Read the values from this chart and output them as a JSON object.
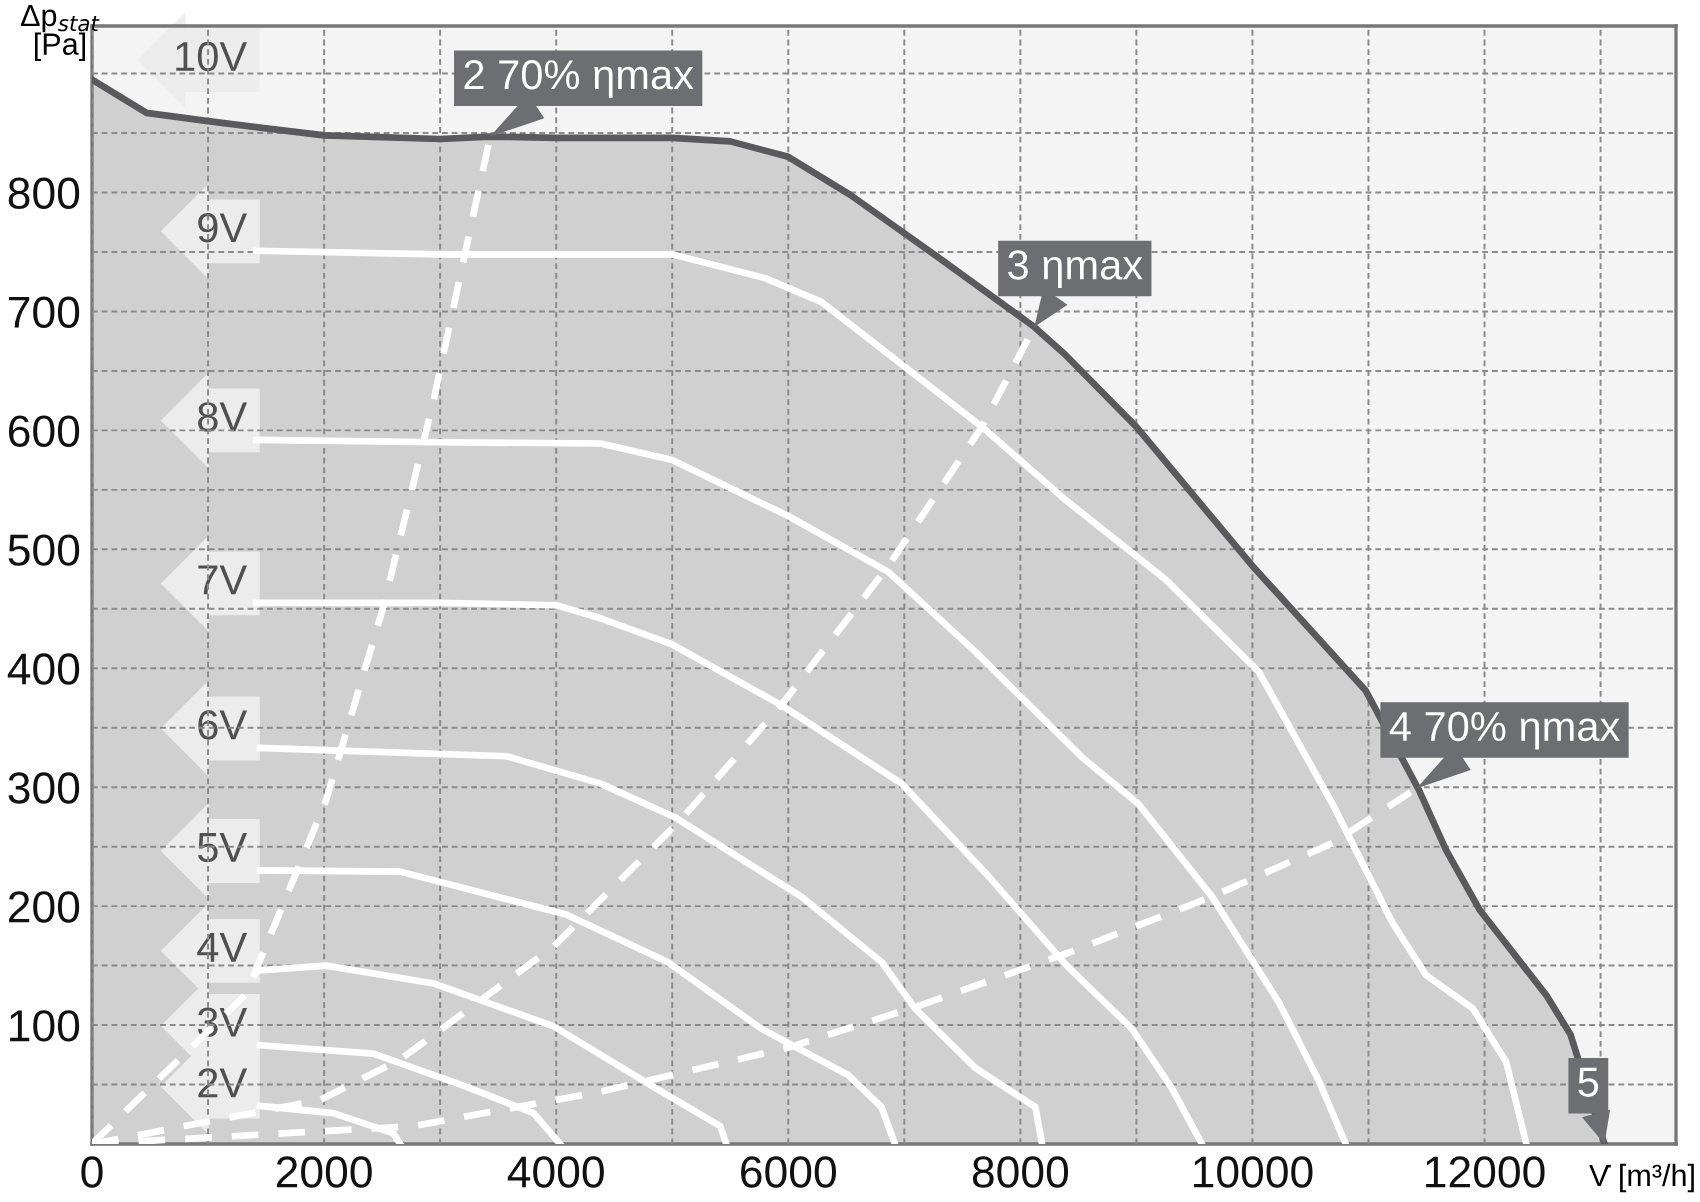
{
  "chart_data": {
    "type": "line",
    "xlabel": "V̇ [m³/h]",
    "ylabel": "Δp$_{stat}$ [Pa]",
    "xlim": [
      0,
      13650
    ],
    "ylim": [
      0,
      940
    ],
    "xticks": [
      0,
      {
        "value": 1000,
        "label": null
      },
      2000,
      {
        "value": 3000,
        "label": null
      },
      4000,
      {
        "value": 5000,
        "label": null
      },
      6000,
      {
        "value": 7000,
        "label": null
      },
      8000,
      {
        "value": 9000,
        "label": null
      },
      10000,
      {
        "value": 11000,
        "label": null
      },
      12000,
      {
        "value": 13000,
        "label": null
      }
    ],
    "yticks": [
      {
        "value": 50,
        "label": null
      },
      100,
      {
        "value": 150,
        "label": null
      },
      200,
      {
        "value": 250,
        "label": null
      },
      300,
      {
        "value": 350,
        "label": null
      },
      400,
      {
        "value": 450,
        "label": null
      },
      500,
      {
        "value": 550,
        "label": null
      },
      600,
      {
        "value": 650,
        "label": null
      },
      700,
      {
        "value": 750,
        "label": null
      },
      800,
      {
        "value": 850,
        "label": null
      },
      {
        "value": 900,
        "label": null
      }
    ],
    "grid": true,
    "series": [
      {
        "name": "10V",
        "type": "area",
        "color": "#5a5a5c",
        "x": [
          0,
          470,
          1000,
          2000,
          3000,
          3431,
          4000,
          5000,
          5500,
          6000,
          6534,
          7300,
          8120,
          8383,
          9000,
          10000,
          10977,
          11438,
          11669,
          11957,
          12533,
          12741,
          13034
        ],
        "values": [
          895,
          867,
          860,
          848,
          845,
          847,
          846,
          846,
          843,
          830,
          798,
          745,
          687,
          664,
          603,
          486,
          381,
          297,
          247,
          197,
          125,
          92,
          0
        ]
      },
      {
        "name": "9V",
        "color": "#ffffff",
        "x": [
          1414,
          3000,
          5000,
          5800,
          6285,
          7669,
          8383,
          9248,
          10055,
          10689,
          11207,
          11496,
          11899,
          12187,
          12360
        ],
        "values": [
          751,
          748,
          748,
          728,
          708,
          603,
          542,
          475,
          397,
          286,
          186,
          142,
          114,
          69,
          0
        ]
      },
      {
        "name": "8V",
        "color": "#ffffff",
        "x": [
          1414,
          3000,
          4383,
          5000,
          6000,
          6862,
          7611,
          8533,
          9017,
          9651,
          10228,
          10573,
          10804
        ],
        "values": [
          592,
          590,
          589,
          575,
          528,
          481,
          414,
          325,
          286,
          208,
          119,
          53,
          0
        ]
      },
      {
        "name": "7V",
        "color": "#ffffff",
        "x": [
          1414,
          3000,
          4000,
          4383,
          5000,
          5940,
          6977,
          7726,
          8400,
          8960,
          9305,
          9565
        ],
        "values": [
          455,
          455,
          453,
          442,
          420,
          369,
          303,
          225,
          150,
          97,
          47,
          0
        ]
      },
      {
        "name": "6V",
        "color": "#ffffff",
        "x": [
          1448,
          3575,
          4383,
          5017,
          6112,
          6804,
          7092,
          7611,
          8130,
          8187
        ],
        "values": [
          333,
          326,
          303,
          275,
          208,
          153,
          114,
          64,
          31,
          0
        ]
      },
      {
        "name": "5V",
        "color": "#ffffff",
        "x": [
          1448,
          2655,
          4086,
          4960,
          5767,
          6516,
          6804,
          6919
        ],
        "values": [
          230,
          229,
          193,
          153,
          97,
          58,
          31,
          0
        ]
      },
      {
        "name": "4V",
        "color": "#ffffff",
        "x": [
          1448,
          2017,
          2943,
          3977,
          4839,
          5414,
          5466
        ],
        "values": [
          146,
          150,
          135,
          99,
          48,
          15,
          0
        ]
      },
      {
        "name": "3V",
        "color": "#ffffff",
        "x": [
          1448,
          2425,
          3230,
          3805,
          4034
        ],
        "values": [
          83,
          76,
          48,
          26,
          0
        ]
      },
      {
        "name": "2V",
        "color": "#ffffff",
        "x": [
          1448,
          2080,
          2598,
          2655
        ],
        "values": [
          32,
          26,
          9,
          0
        ]
      },
      {
        "color": "#ffffff",
        "line_style": "dashed",
        "x": [
          0,
          1328,
          2017,
          2512,
          2943,
          3431
        ],
        "values": [
          0,
          126,
          289,
          452,
          625,
          847
        ]
      },
      {
        "color": "#ffffff",
        "line_style": "dashed",
        "x": [
          0,
          1966,
          2655,
          3977,
          5069,
          5940,
          6862,
          7669,
          8120
        ],
        "values": [
          0,
          37,
          71,
          166,
          272,
          369,
          486,
          603,
          687
        ]
      },
      {
        "color": "#ffffff",
        "line_style": "dashed",
        "x": [
          0,
          2770,
          4383,
          6000,
          7150,
          8418,
          9651,
          10689,
          11414
        ],
        "values": [
          0,
          15,
          44,
          81,
          117,
          161,
          208,
          253,
          299
        ]
      }
    ],
    "annotations": [
      {
        "text": "2 70% ηmax",
        "x": 3431,
        "y": 847
      },
      {
        "text": "3 ηmax",
        "x": 8120,
        "y": 687
      },
      {
        "text": "4 70% ηmax",
        "x": 11414,
        "y": 299
      },
      {
        "text": "5",
        "x": 13034,
        "y": 0
      }
    ]
  }
}
